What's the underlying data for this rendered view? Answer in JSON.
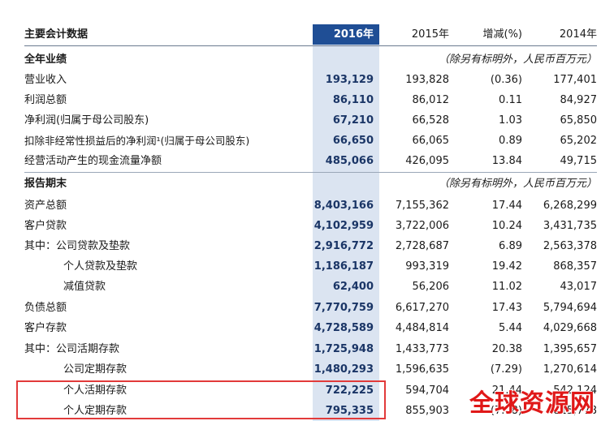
{
  "header": {
    "title": "主要会计数据",
    "col_2016": "2016年",
    "col_2015": "2015年",
    "col_change": "增减(%)",
    "col_2014": "2014年"
  },
  "section_annual": {
    "title": "全年业绩",
    "note": "（除另有标明外，人民币百万元）",
    "rows": [
      {
        "label": "营业收入",
        "v2016": "193,129",
        "v2015": "193,828",
        "chg": "(0.36)",
        "v2014": "177,401"
      },
      {
        "label": "利润总额",
        "v2016": "86,110",
        "v2015": "86,012",
        "chg": "0.11",
        "v2014": "84,927"
      },
      {
        "label": "净利润(归属于母公司股东)",
        "v2016": "67,210",
        "v2015": "66,528",
        "chg": "1.03",
        "v2014": "65,850"
      },
      {
        "label": "扣除非经常性损益后的净利润¹(归属于母公司股东)",
        "v2016": "66,650",
        "v2015": "66,065",
        "chg": "0.89",
        "v2014": "65,202"
      },
      {
        "label": "经营活动产生的现金流量净额",
        "v2016": "485,066",
        "v2015": "426,095",
        "chg": "13.84",
        "v2014": "49,715"
      }
    ]
  },
  "section_period": {
    "title": "报告期末",
    "note": "（除另有标明外，人民币百万元）",
    "rows": [
      {
        "label": "资产总额",
        "v2016": "8,403,166",
        "v2015": "7,155,362",
        "chg": "17.44",
        "v2014": "6,268,299"
      },
      {
        "label": "客户贷款",
        "v2016": "4,102,959",
        "v2015": "3,722,006",
        "chg": "10.24",
        "v2014": "3,431,735"
      },
      {
        "label": "其中：公司贷款及垫款",
        "v2016": "2,916,772",
        "v2015": "2,728,687",
        "chg": "6.89",
        "v2014": "2,563,378"
      },
      {
        "label": "个人贷款及垫款",
        "v2016": "1,186,187",
        "v2015": "993,319",
        "chg": "19.42",
        "v2014": "868,357"
      },
      {
        "label": "减值贷款",
        "v2016": "62,400",
        "v2015": "56,206",
        "chg": "11.02",
        "v2014": "43,017"
      },
      {
        "label": "负债总额",
        "v2016": "7,770,759",
        "v2015": "6,617,270",
        "chg": "17.43",
        "v2014": "5,794,694"
      },
      {
        "label": "客户存款",
        "v2016": "4,728,589",
        "v2015": "4,484,814",
        "chg": "5.44",
        "v2014": "4,029,668"
      },
      {
        "label": "其中：公司活期存款",
        "v2016": "1,725,948",
        "v2015": "1,433,773",
        "chg": "20.38",
        "v2014": "1,395,657"
      },
      {
        "label": "公司定期存款",
        "v2016": "1,480,293",
        "v2015": "1,596,635",
        "chg": "(7.29)",
        "v2014": "1,270,614"
      },
      {
        "label": "个人活期存款",
        "v2016": "722,225",
        "v2015": "594,704",
        "chg": "21.44",
        "v2014": "542,124"
      },
      {
        "label": "个人定期存款",
        "v2016": "795,335",
        "v2015": "855,903",
        "chg": "(7.08)",
        "v2014": "815,778"
      }
    ]
  },
  "watermark": "全球资源网",
  "colors": {
    "header_bg": "#1f4e95",
    "highlight_col": "#dbe4f1",
    "box": "#e23a3a",
    "watermark": "#e01818"
  }
}
